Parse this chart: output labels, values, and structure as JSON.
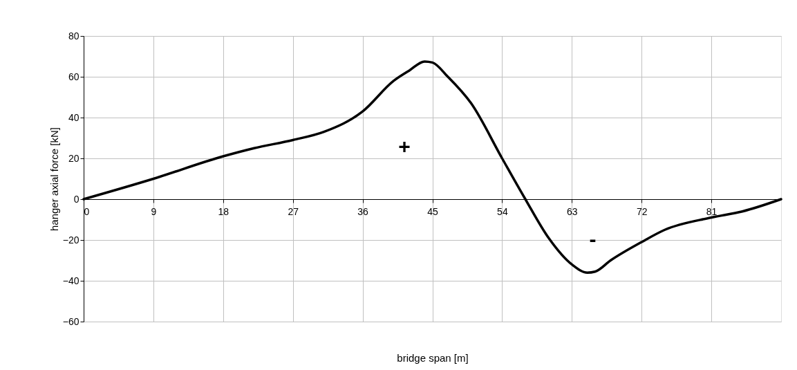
{
  "chart_data": {
    "type": "line",
    "xlabel": "bridge span [m]",
    "ylabel": "hanger axial force [kN]",
    "x": [
      0,
      9,
      18,
      22,
      27,
      31,
      36,
      40,
      42,
      44,
      45,
      47,
      50,
      54,
      57,
      60,
      63,
      65,
      66,
      68,
      72,
      75,
      81,
      85,
      90
    ],
    "series": [
      {
        "color": "#000000",
        "values": [
          0,
          10,
          21,
          25,
          29,
          33,
          43,
          58,
          63,
          67.5,
          67,
          60,
          47,
          20,
          0,
          -19,
          -32,
          -36,
          -35.5,
          -30,
          -21,
          -15,
          -9,
          -6,
          0
        ]
      }
    ],
    "xlim": [
      0,
      90
    ],
    "xticks": [
      0,
      9,
      18,
      27,
      36,
      45,
      54,
      63,
      72,
      81
    ],
    "ylim": [
      -60,
      80
    ],
    "yticks": [
      -60,
      -40,
      -20,
      0,
      20,
      40,
      60,
      80
    ],
    "grid": true,
    "marker": "none",
    "line_style": "solid",
    "annotations": [
      "+",
      "-"
    ]
  }
}
